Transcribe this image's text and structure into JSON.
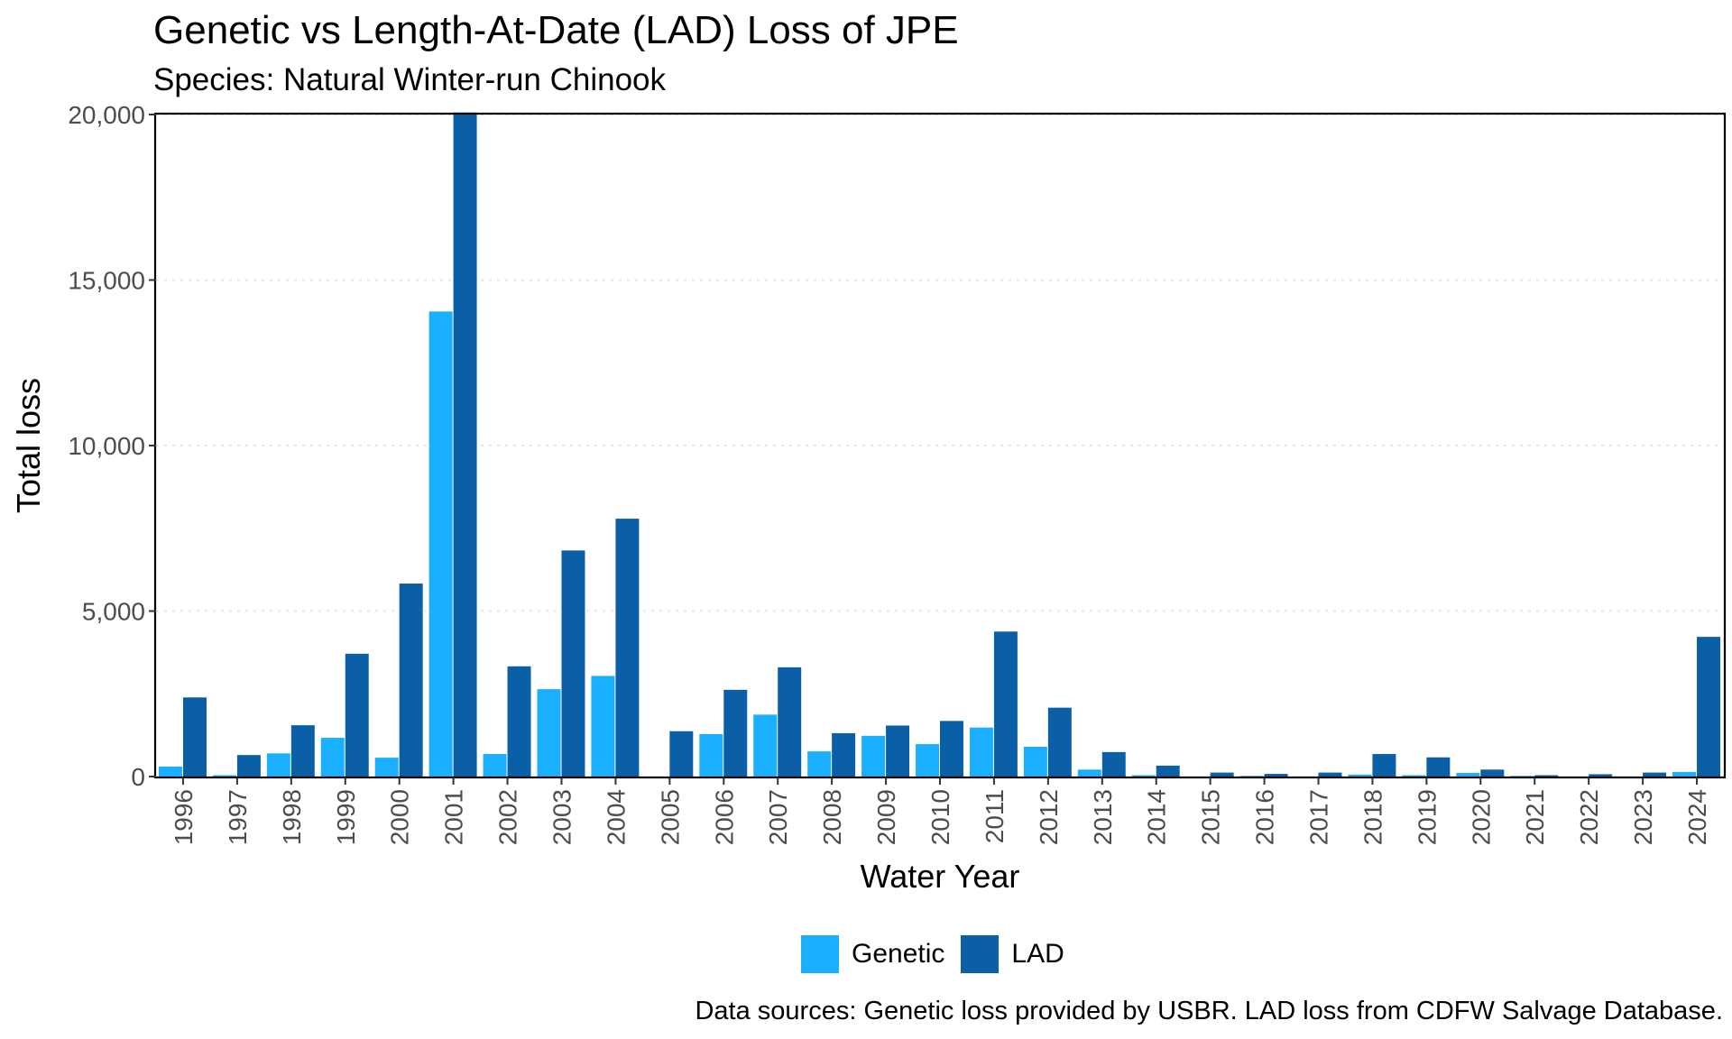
{
  "chart_data": {
    "type": "bar",
    "title": "Genetic vs Length-At-Date (LAD) Loss of JPE",
    "subtitle": "Species: Natural Winter-run Chinook",
    "xlabel": "Water Year",
    "ylabel": "Total loss",
    "caption": "Data sources: Genetic loss provided by USBR. LAD loss from CDFW Salvage Database.",
    "ylim": [
      0,
      20000
    ],
    "yticks": [
      0,
      5000,
      10000,
      15000,
      20000
    ],
    "ytick_labels": [
      "0",
      "5,000",
      "10,000",
      "15,000",
      "20,000"
    ],
    "grid": "horizontal dotted",
    "legend_position": "bottom",
    "categories": [
      "1996",
      "1997",
      "1998",
      "1999",
      "2000",
      "2001",
      "2002",
      "2003",
      "2004",
      "2005",
      "2006",
      "2007",
      "2008",
      "2009",
      "2010",
      "2011",
      "2012",
      "2013",
      "2014",
      "2015",
      "2016",
      "2017",
      "2018",
      "2019",
      "2020",
      "2021",
      "2022",
      "2023",
      "2024"
    ],
    "series": [
      {
        "name": "Genetic",
        "color": "#1aafff",
        "values": [
          300,
          40,
          700,
          1170,
          570,
          14050,
          680,
          2640,
          3040,
          0,
          1280,
          1870,
          760,
          1230,
          980,
          1480,
          900,
          210,
          40,
          0,
          20,
          0,
          60,
          40,
          110,
          20,
          0,
          0,
          140
        ]
      },
      {
        "name": "LAD",
        "color": "#0a5fa6",
        "values": [
          2390,
          650,
          1550,
          3710,
          5830,
          20060,
          3330,
          6830,
          7790,
          1370,
          2620,
          3300,
          1310,
          1540,
          1680,
          4380,
          2080,
          740,
          330,
          120,
          80,
          120,
          680,
          580,
          210,
          40,
          70,
          120,
          4220
        ]
      }
    ]
  }
}
